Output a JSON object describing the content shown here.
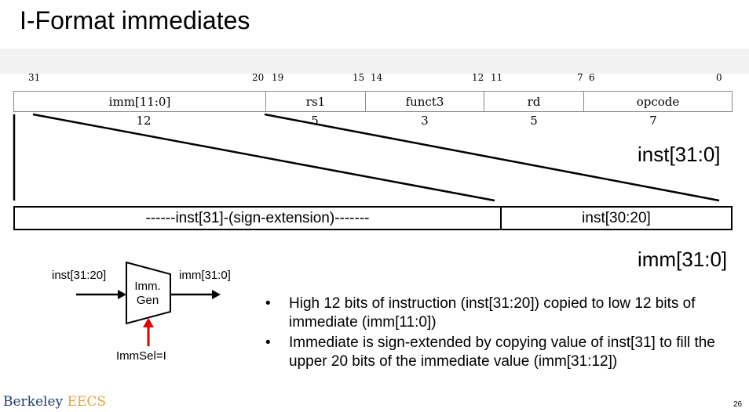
{
  "title": "I-Format immediates",
  "bit_numbers": [
    "31",
    "20",
    "19",
    "15",
    "14",
    "12",
    "11",
    "7",
    "6",
    "0"
  ],
  "fields": [
    {
      "name": "imm[11:0]",
      "width": "12"
    },
    {
      "name": "rs1",
      "width": "5"
    },
    {
      "name": "funct3",
      "width": "3"
    },
    {
      "name": "rd",
      "width": "5"
    },
    {
      "name": "opcode",
      "width": "7"
    }
  ],
  "inst_label": "inst[31:0]",
  "imm_label": "imm[31:0]",
  "imm_segments": [
    "------inst[31]-(sign-extension)-------",
    "inst[30:20]"
  ],
  "imm_gen": {
    "input": "inst[31:20]",
    "output": "imm[31:0]",
    "block_line1": "Imm.",
    "block_line2": "Gen",
    "control": "ImmSel=I",
    "control_color": "#e00000"
  },
  "bullets": [
    "High 12 bits of instruction (inst[31:20]) copied to low 12 bits of immediate (imm[11:0])",
    "Immediate is sign-extended by copying value of inst[31] to fill the upper 20 bits of the immediate value (imm[31:12])"
  ],
  "bullet_glyph": "•",
  "logo": {
    "part1": "Berkeley",
    "part2": "EECS"
  },
  "page_number": "26"
}
